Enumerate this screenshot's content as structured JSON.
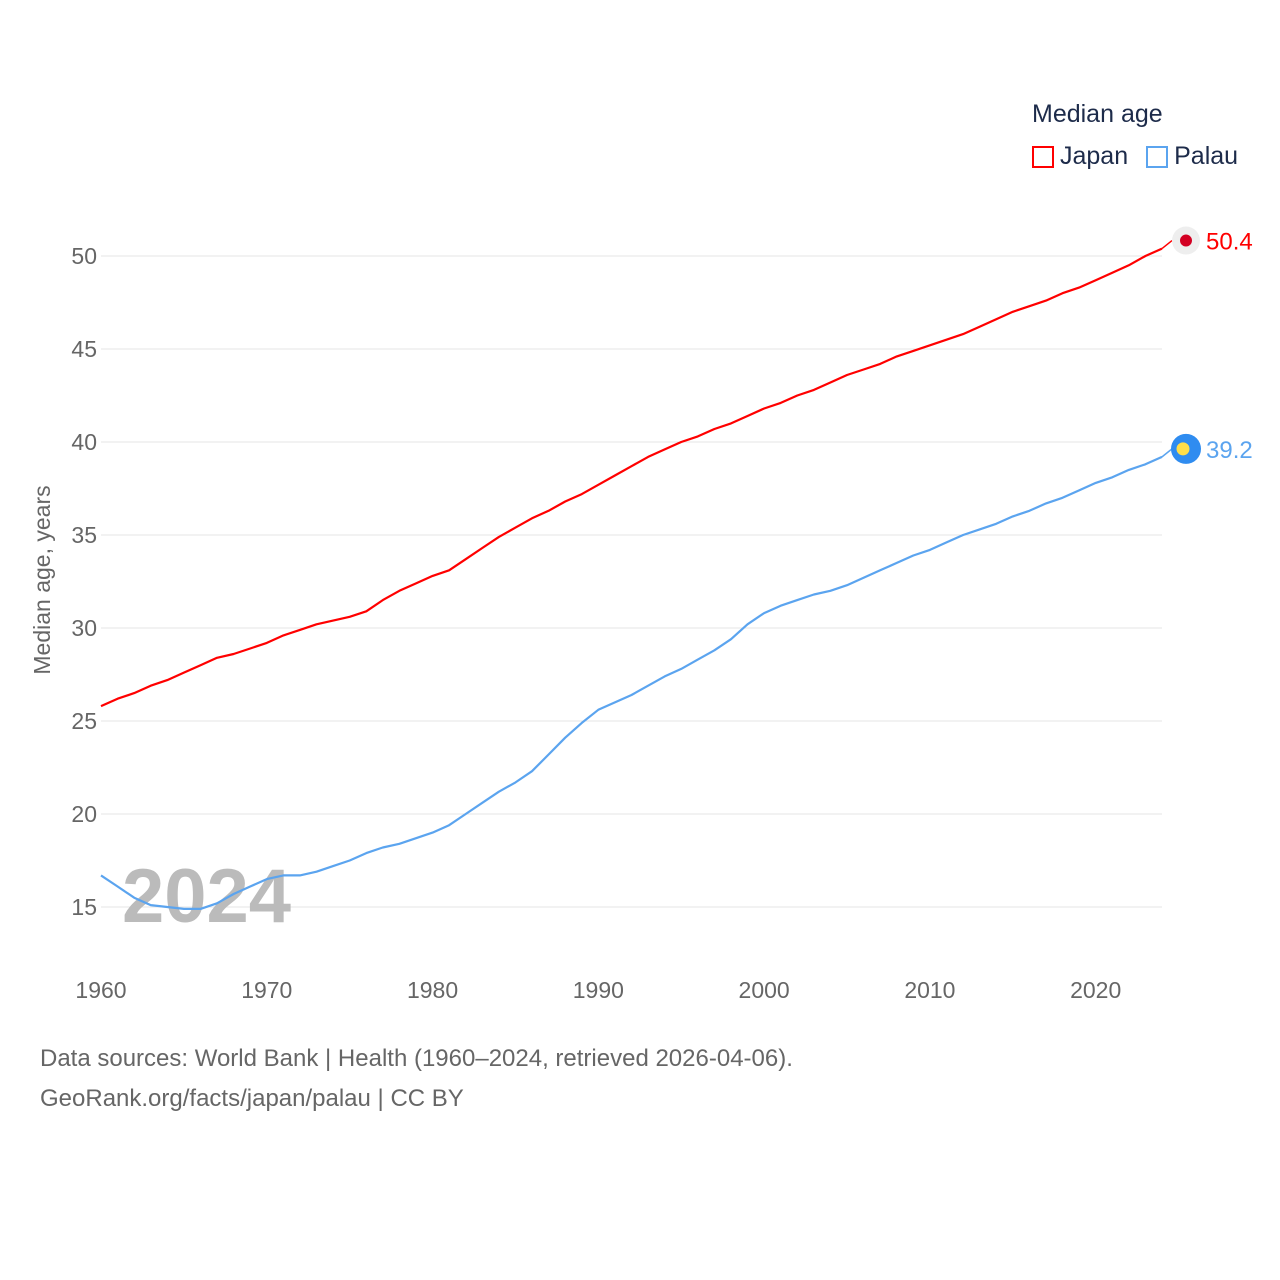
{
  "chart_data": {
    "type": "line",
    "ylabel": "Median age, years",
    "legend_title": "Median age",
    "legend_position": "top-right",
    "xlim": [
      1960,
      2024
    ],
    "ylim": [
      12,
      52
    ],
    "yticks": [
      15,
      20,
      25,
      30,
      35,
      40,
      45,
      50
    ],
    "xticks": [
      1960,
      1970,
      1980,
      1990,
      2000,
      2010,
      2020
    ],
    "grid": true,
    "year_watermark": "2024",
    "x": [
      1960,
      1961,
      1962,
      1963,
      1964,
      1965,
      1966,
      1967,
      1968,
      1969,
      1970,
      1971,
      1972,
      1973,
      1974,
      1975,
      1976,
      1977,
      1978,
      1979,
      1980,
      1981,
      1982,
      1983,
      1984,
      1985,
      1986,
      1987,
      1988,
      1989,
      1990,
      1991,
      1992,
      1993,
      1994,
      1995,
      1996,
      1997,
      1998,
      1999,
      2000,
      2001,
      2002,
      2003,
      2004,
      2005,
      2006,
      2007,
      2008,
      2009,
      2010,
      2011,
      2012,
      2013,
      2014,
      2015,
      2016,
      2017,
      2018,
      2019,
      2020,
      2021,
      2022,
      2023,
      2024
    ],
    "series": [
      {
        "name": "Japan",
        "color": "#ff0000",
        "end_label": "50.4",
        "values": [
          25.8,
          26.2,
          26.5,
          26.9,
          27.2,
          27.6,
          28.0,
          28.4,
          28.6,
          28.9,
          29.2,
          29.6,
          29.9,
          30.2,
          30.4,
          30.6,
          30.9,
          31.5,
          32.0,
          32.4,
          32.8,
          33.1,
          33.7,
          34.3,
          34.9,
          35.4,
          35.9,
          36.3,
          36.8,
          37.2,
          37.7,
          38.2,
          38.7,
          39.2,
          39.6,
          40.0,
          40.3,
          40.7,
          41.0,
          41.4,
          41.8,
          42.1,
          42.5,
          42.8,
          43.2,
          43.6,
          43.9,
          44.2,
          44.6,
          44.9,
          45.2,
          45.5,
          45.8,
          46.2,
          46.6,
          47.0,
          47.3,
          47.6,
          48.0,
          48.3,
          48.7,
          49.1,
          49.5,
          50.0,
          50.4
        ]
      },
      {
        "name": "Palau",
        "color": "#5ba4ef",
        "end_label": "39.2",
        "values": [
          16.7,
          16.1,
          15.5,
          15.1,
          15.0,
          14.9,
          14.9,
          15.2,
          15.7,
          16.1,
          16.5,
          16.7,
          16.7,
          16.9,
          17.2,
          17.5,
          17.9,
          18.2,
          18.4,
          18.7,
          19.0,
          19.4,
          20.0,
          20.6,
          21.2,
          21.7,
          22.3,
          23.2,
          24.1,
          24.9,
          25.6,
          26.0,
          26.4,
          26.9,
          27.4,
          27.8,
          28.3,
          28.8,
          29.4,
          30.2,
          30.8,
          31.2,
          31.5,
          31.8,
          32.0,
          32.3,
          32.7,
          33.1,
          33.5,
          33.9,
          34.2,
          34.6,
          35.0,
          35.3,
          35.6,
          36.0,
          36.3,
          36.7,
          37.0,
          37.4,
          37.8,
          38.1,
          38.5,
          38.8,
          39.2
        ]
      }
    ]
  },
  "footer": {
    "sources": "Data sources: World Bank | Health (1960–2024, retrieved 2026-04-06).",
    "credit": "GeoRank.org/facts/japan/palau | CC BY"
  }
}
